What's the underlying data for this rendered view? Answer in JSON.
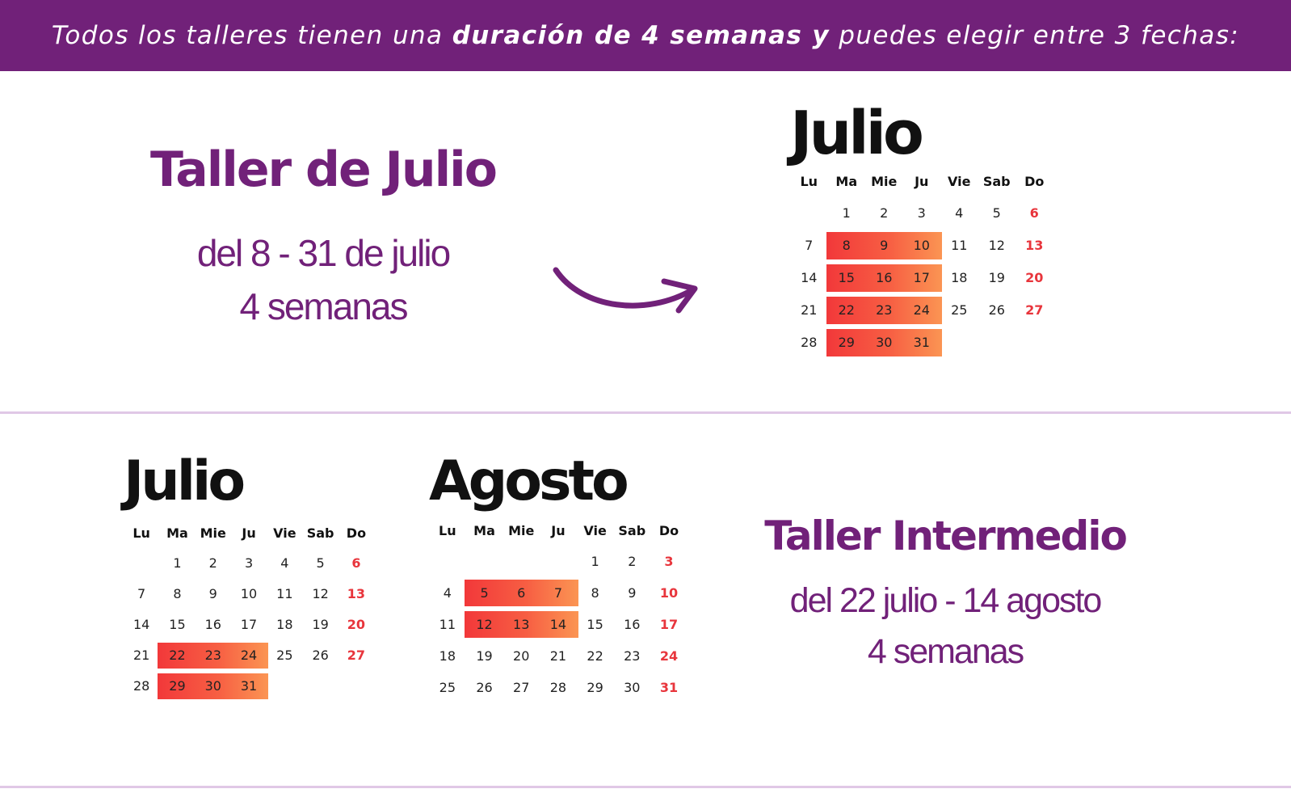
{
  "banner": {
    "text_before": "Todos los talleres tienen una ",
    "text_bold": "duración de 4 semanas y",
    "text_after": " puedes elegir entre 3 fechas:"
  },
  "colors": {
    "brand_purple": "#712179",
    "divider": "#e0c8e6",
    "sunday_red": "#e8353c",
    "highlight_from": "#f2383a",
    "highlight_to": "#fb9553"
  },
  "weekday_labels": [
    "Lu",
    "Ma",
    "Mie",
    "Ju",
    "Vie",
    "Sab",
    "Do"
  ],
  "section1": {
    "workshop": {
      "title": "Taller de Julio",
      "dates": "del 8 - 31 de julio",
      "duration": "4 semanas"
    },
    "arrow_icon": "curved-arrow-right-icon",
    "calendar": {
      "month": "Julio",
      "weeks": [
        [
          "",
          "1",
          "2",
          "3",
          "4",
          "5",
          "6"
        ],
        [
          "7",
          "8",
          "9",
          "10",
          "11",
          "12",
          "13"
        ],
        [
          "14",
          "15",
          "16",
          "17",
          "18",
          "19",
          "20"
        ],
        [
          "21",
          "22",
          "23",
          "24",
          "25",
          "26",
          "27"
        ],
        [
          "28",
          "29",
          "30",
          "31",
          "",
          "",
          ""
        ]
      ],
      "highlighted_days": [
        "8",
        "9",
        "10",
        "15",
        "16",
        "17",
        "22",
        "23",
        "24",
        "29",
        "30",
        "31"
      ]
    }
  },
  "section2": {
    "calendar_july": {
      "month": "Julio",
      "weeks": [
        [
          "",
          "1",
          "2",
          "3",
          "4",
          "5",
          "6"
        ],
        [
          "7",
          "8",
          "9",
          "10",
          "11",
          "12",
          "13"
        ],
        [
          "14",
          "15",
          "16",
          "17",
          "18",
          "19",
          "20"
        ],
        [
          "21",
          "22",
          "23",
          "24",
          "25",
          "26",
          "27"
        ],
        [
          "28",
          "29",
          "30",
          "31",
          "",
          "",
          ""
        ]
      ],
      "highlighted_days": [
        "22",
        "23",
        "24",
        "29",
        "30",
        "31"
      ]
    },
    "calendar_august": {
      "month": "Agosto",
      "weeks": [
        [
          "",
          "",
          "",
          "",
          "1",
          "2",
          "3"
        ],
        [
          "4",
          "5",
          "6",
          "7",
          "8",
          "9",
          "10"
        ],
        [
          "11",
          "12",
          "13",
          "14",
          "15",
          "16",
          "17"
        ],
        [
          "18",
          "19",
          "20",
          "21",
          "22",
          "23",
          "24"
        ],
        [
          "25",
          "26",
          "27",
          "28",
          "29",
          "30",
          "31"
        ]
      ],
      "highlighted_days": [
        "5",
        "6",
        "7",
        "12",
        "13",
        "14"
      ]
    },
    "workshop": {
      "title": "Taller Intermedio",
      "dates": "del 22 julio - 14 agosto",
      "duration": "4 semanas"
    }
  }
}
